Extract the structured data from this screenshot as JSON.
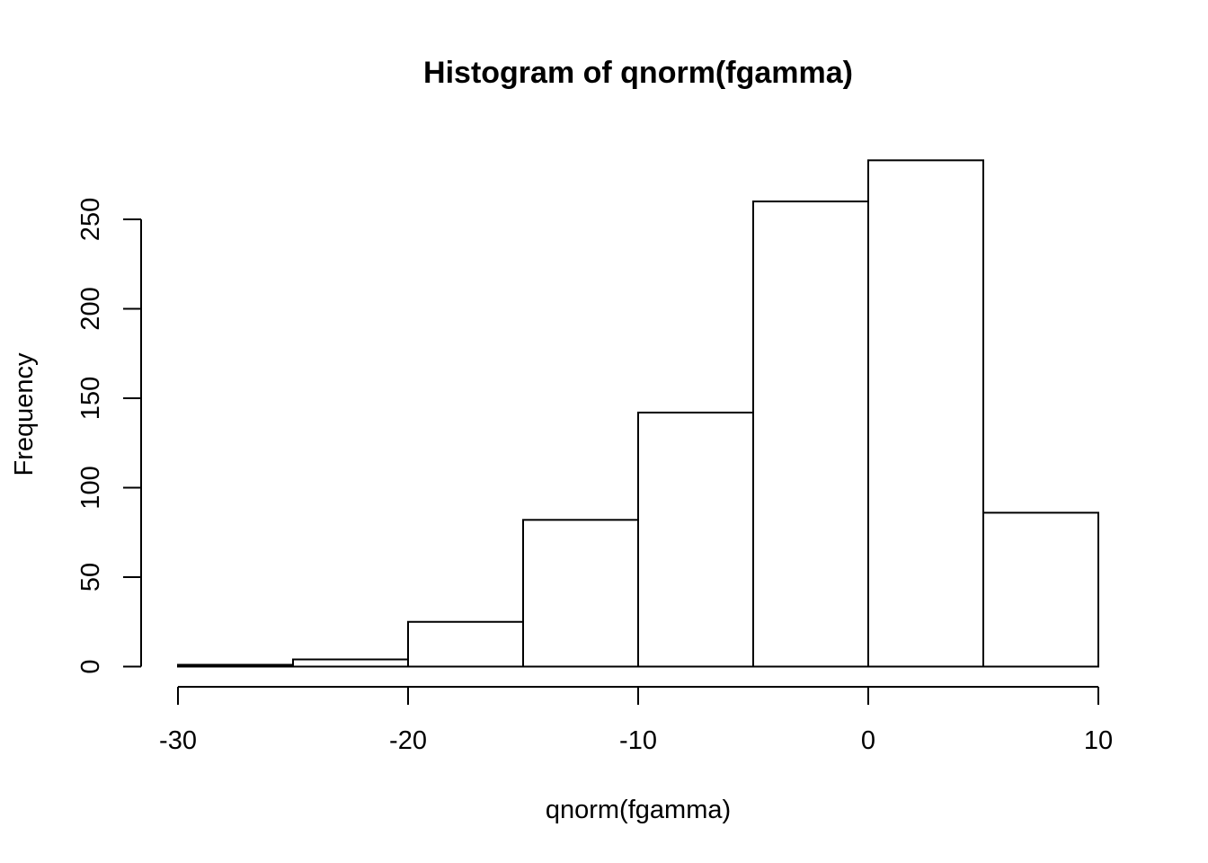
{
  "chart_data": {
    "type": "bar",
    "title": "Histogram of qnorm(fgamma)",
    "xlabel": "qnorm(fgamma)",
    "ylabel": "Frequency",
    "bins": [
      {
        "x0": -30,
        "x1": -25,
        "count": 1
      },
      {
        "x0": -25,
        "x1": -20,
        "count": 4
      },
      {
        "x0": -20,
        "x1": -15,
        "count": 25
      },
      {
        "x0": -15,
        "x1": -10,
        "count": 82
      },
      {
        "x0": -10,
        "x1": -5,
        "count": 142
      },
      {
        "x0": -5,
        "x1": 0,
        "count": 260
      },
      {
        "x0": 0,
        "x1": 5,
        "count": 283
      },
      {
        "x0": 5,
        "x1": 10,
        "count": 86
      }
    ],
    "xlim": [
      -30,
      10
    ],
    "ylim": [
      0,
      283
    ],
    "x_ticks": [
      -30,
      -20,
      -10,
      0,
      10
    ],
    "y_ticks": [
      0,
      50,
      100,
      150,
      200,
      250
    ],
    "grid": false,
    "legend": "none"
  }
}
